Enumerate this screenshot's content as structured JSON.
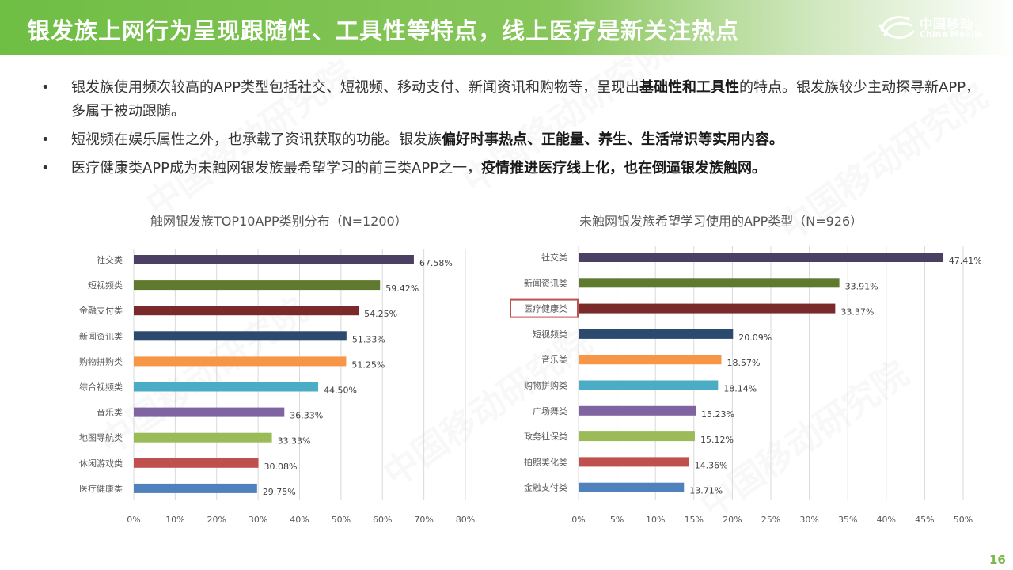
{
  "header": {
    "title": "银发族上网行为呈现跟随性、工具性等特点，线上医疗是新关注热点",
    "logo_cn": "中国移动",
    "logo_en": "China Mobile"
  },
  "bullets": [
    {
      "dot": "•",
      "text_a": "银发族使用频次较高的APP类型包括社交、短视频、移动支付、新闻资讯和购物等，呈现出",
      "bold": "基础性和工具性",
      "text_b": "的特点。银发族较少主动探寻新APP，多属于被动跟随。"
    },
    {
      "dot": "•",
      "text_a": "短视频在娱乐属性之外，也承载了资讯获取的功能。银发族",
      "bold": "偏好时事热点、正能量、养生、生活常识等实用内容。",
      "text_b": ""
    },
    {
      "dot": "•",
      "text_a": "医疗健康类APP成为未触网银发族最希望学习的前三类APP之一，",
      "bold": "疫情推进医疗线上化，也在倒逼银发族触网。",
      "text_b": ""
    }
  ],
  "watermark": "中国移动研究院",
  "page_number": "16",
  "chart_data": [
    {
      "type": "bar",
      "orientation": "horizontal",
      "title": "触网银发族TOP10APP类别分布（N=1200）",
      "categories": [
        "社交类",
        "短视频类",
        "金融支付类",
        "新闻资讯类",
        "购物拼购类",
        "综合视频类",
        "音乐类",
        "地图导航类",
        "休闲游戏类",
        "医疗健康类"
      ],
      "values": [
        67.58,
        59.42,
        54.25,
        51.33,
        51.25,
        44.5,
        36.33,
        33.33,
        30.08,
        29.75
      ],
      "value_labels": [
        "67.58%",
        "59.42%",
        "54.25%",
        "51.33%",
        "51.25%",
        "44.50%",
        "36.33%",
        "33.33%",
        "30.08%",
        "29.75%"
      ],
      "colors": [
        "#4b3f63",
        "#5f7a2e",
        "#7a2a2a",
        "#2b4a6e",
        "#f79646",
        "#4bacc6",
        "#8064a2",
        "#9bbb59",
        "#c0504d",
        "#4f81bd"
      ],
      "xlim": [
        0,
        80
      ],
      "ticks": [
        "0%",
        "10%",
        "20%",
        "30%",
        "40%",
        "50%",
        "60%",
        "70%",
        "80%"
      ],
      "grid": true
    },
    {
      "type": "bar",
      "orientation": "horizontal",
      "title": "未触网银发族希望学习使用的APP类型（N=926）",
      "categories": [
        "社交类",
        "新闻资讯类",
        "医疗健康类",
        "短视频类",
        "音乐类",
        "购物拼购类",
        "广场舞类",
        "政务社保类",
        "拍照美化类",
        "金融支付类"
      ],
      "values": [
        47.41,
        33.91,
        33.37,
        20.09,
        18.57,
        18.14,
        15.23,
        15.12,
        14.36,
        13.71
      ],
      "value_labels": [
        "47.41%",
        "33.91%",
        "33.37%",
        "20.09%",
        "18.57%",
        "18.14%",
        "15.23%",
        "15.12%",
        "14.36%",
        "13.71%"
      ],
      "colors": [
        "#4b3f63",
        "#5f7a2e",
        "#7a2a2a",
        "#2b4a6e",
        "#f79646",
        "#4bacc6",
        "#8064a2",
        "#9bbb59",
        "#c0504d",
        "#4f81bd"
      ],
      "xlim": [
        0,
        50
      ],
      "ticks": [
        "0%",
        "5%",
        "10%",
        "15%",
        "20%",
        "25%",
        "30%",
        "35%",
        "40%",
        "45%",
        "50%"
      ],
      "grid": true,
      "highlighted_category": "医疗健康类",
      "highlight_color": "#c0504d"
    }
  ]
}
